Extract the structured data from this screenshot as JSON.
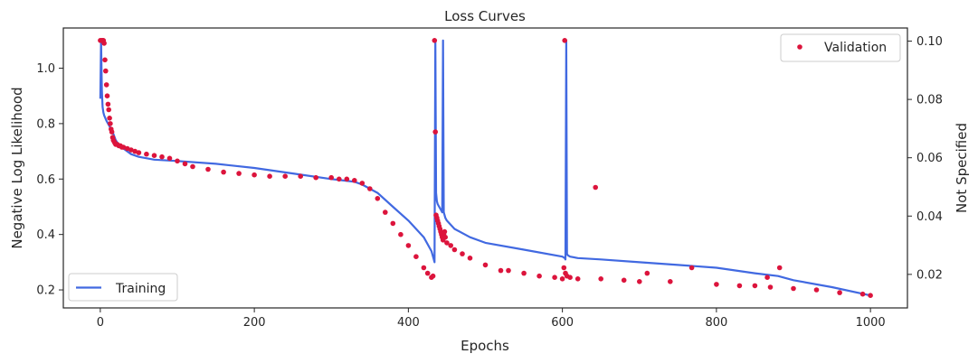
{
  "chart_data": {
    "type": "line",
    "title": "Loss Curves",
    "xlabel": "Epochs",
    "ylabel": "Negative Log Likelihood",
    "y2label": "Not Specified",
    "xlim": [
      -48,
      1048
    ],
    "ylim": [
      0.135,
      1.145
    ],
    "y2lim": [
      0.0085,
      0.1045
    ],
    "xticks": [
      0,
      200,
      400,
      600,
      800,
      1000
    ],
    "yticks": [
      0.2,
      0.4,
      0.6,
      0.8,
      1.0
    ],
    "y2ticks": [
      0.02,
      0.04,
      0.06,
      0.08,
      0.1
    ],
    "ytick_labels": [
      "0.2",
      "0.4",
      "0.6",
      "0.8",
      "1.0"
    ],
    "y2tick_labels": [
      "0.02",
      "0.04",
      "0.06",
      "0.08",
      "0.10"
    ],
    "grid": false,
    "series": [
      {
        "name": "Training",
        "kind": "line",
        "axis": "left",
        "color": "#4169e1",
        "legend_position": "lower-left",
        "x": [
          0,
          1,
          2,
          3,
          4,
          5,
          8,
          12,
          16,
          20,
          25,
          30,
          40,
          50,
          70,
          100,
          150,
          200,
          250,
          300,
          330,
          340,
          360,
          380,
          400,
          420,
          430,
          433,
          434,
          435,
          436,
          437,
          438,
          440,
          442,
          443,
          444,
          445,
          446,
          447,
          448,
          450,
          460,
          480,
          500,
          550,
          600,
          603,
          604,
          605,
          606,
          607,
          610,
          620,
          650,
          700,
          750,
          800,
          850,
          880,
          900,
          950,
          1000
        ],
        "y": [
          0.89,
          1.1,
          0.92,
          0.86,
          0.84,
          0.83,
          0.81,
          0.79,
          0.77,
          0.74,
          0.72,
          0.71,
          0.69,
          0.68,
          0.67,
          0.665,
          0.655,
          0.64,
          0.62,
          0.6,
          0.59,
          0.58,
          0.55,
          0.5,
          0.45,
          0.39,
          0.34,
          0.31,
          0.3,
          1.1,
          0.55,
          0.52,
          0.51,
          0.5,
          0.49,
          0.485,
          0.48,
          1.1,
          0.48,
          0.47,
          0.46,
          0.45,
          0.42,
          0.39,
          0.37,
          0.345,
          0.32,
          0.315,
          0.31,
          1.1,
          0.33,
          0.325,
          0.32,
          0.315,
          0.31,
          0.3,
          0.29,
          0.28,
          0.26,
          0.25,
          0.235,
          0.21,
          0.18
        ]
      },
      {
        "name": "Validation",
        "kind": "scatter",
        "axis": "left",
        "color": "#dc143c",
        "legend_position": "upper-right",
        "x": [
          0,
          2,
          3,
          4,
          5,
          6,
          7,
          8,
          9,
          10,
          11,
          12,
          13,
          14,
          15,
          16,
          17,
          18,
          19,
          20,
          22,
          24,
          26,
          28,
          30,
          35,
          40,
          45,
          50,
          60,
          70,
          80,
          90,
          100,
          110,
          120,
          140,
          160,
          180,
          200,
          220,
          240,
          260,
          280,
          300,
          310,
          320,
          330,
          340,
          350,
          360,
          370,
          380,
          390,
          400,
          410,
          420,
          425,
          430,
          432,
          434,
          435,
          436,
          437,
          438,
          439,
          440,
          441,
          442,
          443,
          444,
          445,
          446,
          447,
          448,
          450,
          455,
          460,
          470,
          480,
          500,
          520,
          530,
          550,
          570,
          590,
          600,
          602,
          603,
          604,
          606,
          610,
          620,
          643,
          650,
          680,
          700,
          710,
          740,
          768,
          800,
          830,
          850,
          866,
          870,
          882,
          900,
          930,
          960,
          990,
          1000
        ],
        "y": [
          1.1,
          1.1,
          1.1,
          1.1,
          1.09,
          1.03,
          0.99,
          0.94,
          0.9,
          0.87,
          0.85,
          0.82,
          0.8,
          0.78,
          0.77,
          0.75,
          0.74,
          0.735,
          0.73,
          0.725,
          0.725,
          0.72,
          0.72,
          0.715,
          0.715,
          0.71,
          0.705,
          0.7,
          0.695,
          0.69,
          0.685,
          0.68,
          0.675,
          0.665,
          0.655,
          0.645,
          0.635,
          0.625,
          0.62,
          0.615,
          0.61,
          0.61,
          0.61,
          0.605,
          0.605,
          0.6,
          0.6,
          0.595,
          0.585,
          0.565,
          0.53,
          0.48,
          0.44,
          0.4,
          0.36,
          0.32,
          0.28,
          0.26,
          0.245,
          0.25,
          1.1,
          0.77,
          0.47,
          0.46,
          0.45,
          0.44,
          0.43,
          0.42,
          0.41,
          0.4,
          0.39,
          0.38,
          0.4,
          0.41,
          0.39,
          0.37,
          0.36,
          0.345,
          0.33,
          0.315,
          0.29,
          0.27,
          0.27,
          0.26,
          0.25,
          0.245,
          0.24,
          0.28,
          1.1,
          0.26,
          0.25,
          0.245,
          0.24,
          0.57,
          0.24,
          0.235,
          0.23,
          0.26,
          0.23,
          0.28,
          0.22,
          0.215,
          0.215,
          0.245,
          0.21,
          0.28,
          0.205,
          0.2,
          0.19,
          0.185,
          0.18
        ]
      }
    ]
  }
}
